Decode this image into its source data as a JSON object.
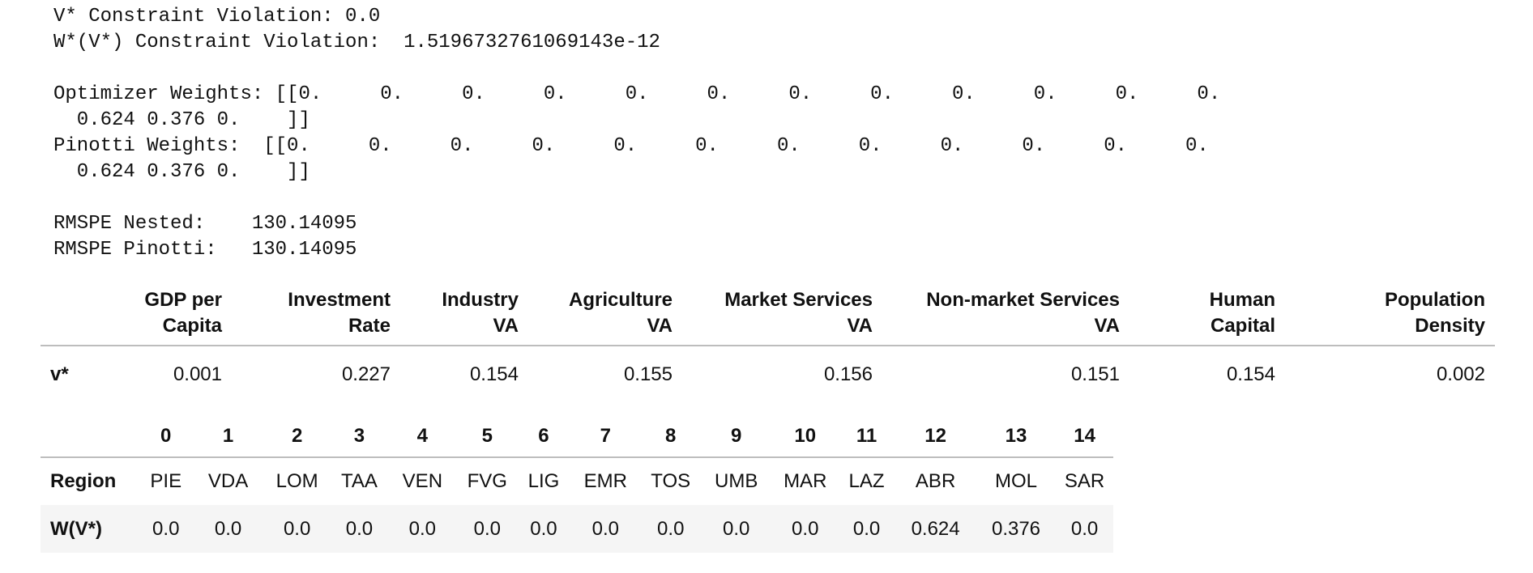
{
  "output_lines": {
    "v_violation": "V* Constraint Violation: 0.0",
    "w_violation": "W*(V*) Constraint Violation:  1.5196732761069143e-12",
    "opt_weights_1": "Optimizer Weights: [[0.     0.     0.     0.     0.     0.     0.     0.     0.     0.     0.     0.",
    "opt_weights_2": "  0.624 0.376 0.    ]]",
    "pin_weights_1": "Pinotti Weights:  [[0.     0.     0.     0.     0.     0.     0.     0.     0.     0.     0.     0.",
    "pin_weights_2": "  0.624 0.376 0.    ]]",
    "rmspe_nested": "RMSPE Nested:    130.14095",
    "rmspe_pinotti": "RMSPE Pinotti:   130.14095"
  },
  "vstar_table": {
    "headers": [
      {
        "line1": "GDP per",
        "line2": "Capita"
      },
      {
        "line1": "Investment",
        "line2": "Rate"
      },
      {
        "line1": "Industry",
        "line2": "VA"
      },
      {
        "line1": "Agriculture",
        "line2": "VA"
      },
      {
        "line1": "Market Services",
        "line2": "VA"
      },
      {
        "line1": "Non-market Services",
        "line2": "VA"
      },
      {
        "line1": "Human",
        "line2": "Capital"
      },
      {
        "line1": "Population",
        "line2": "Density"
      }
    ],
    "row_label": "v*",
    "values": [
      "0.001",
      "0.227",
      "0.154",
      "0.155",
      "0.156",
      "0.151",
      "0.154",
      "0.002"
    ]
  },
  "weights_table": {
    "columns": [
      "0",
      "1",
      "2",
      "3",
      "4",
      "5",
      "6",
      "7",
      "8",
      "9",
      "10",
      "11",
      "12",
      "13",
      "14"
    ],
    "rows": [
      {
        "label": "Region",
        "cells": [
          "PIE",
          "VDA",
          "LOM",
          "TAA",
          "VEN",
          "FVG",
          "LIG",
          "EMR",
          "TOS",
          "UMB",
          "MAR",
          "LAZ",
          "ABR",
          "MOL",
          "SAR"
        ]
      },
      {
        "label": "W(V*)",
        "cells": [
          "0.0",
          "0.0",
          "0.0",
          "0.0",
          "0.0",
          "0.0",
          "0.0",
          "0.0",
          "0.0",
          "0.0",
          "0.0",
          "0.0",
          "0.624",
          "0.376",
          "0.0"
        ]
      }
    ]
  }
}
